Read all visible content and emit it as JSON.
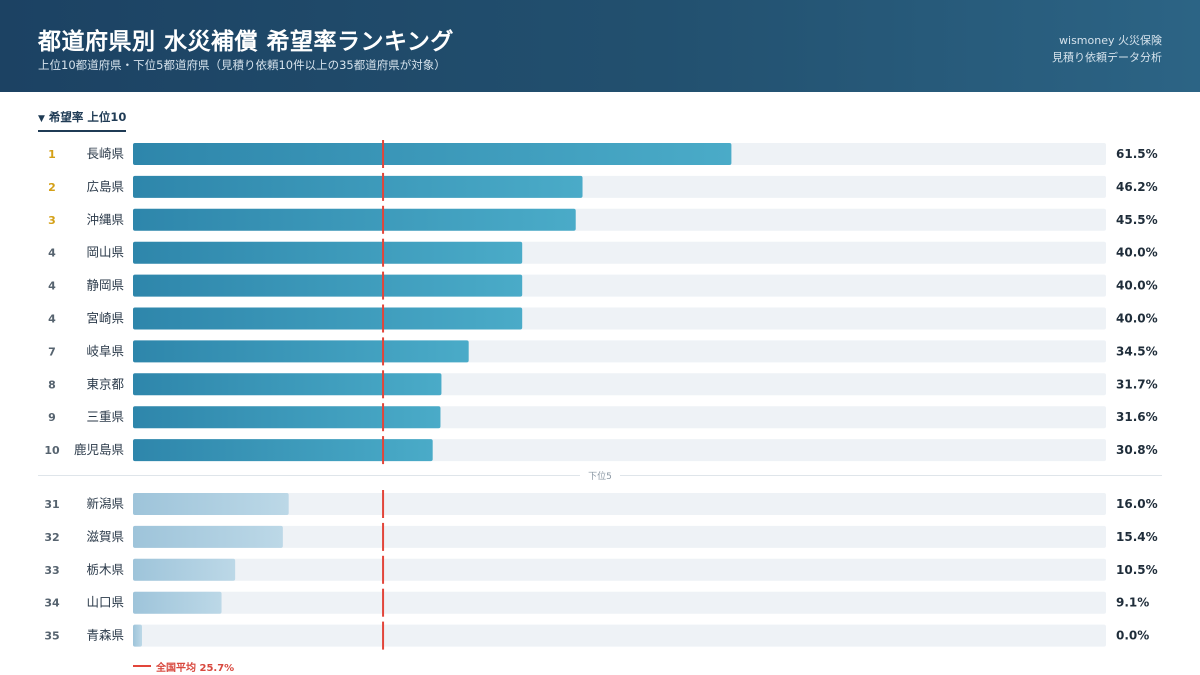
{
  "header": {
    "title": "都道府県別 水災補償 希望率ランキング",
    "subtitle": "上位10都道府県・下位5都道府県（見積り依頼10件以上の35都道府県が対象）",
    "brand_line1": "wismoney 火災保険",
    "brand_line2": "見積り依頼データ分析"
  },
  "section_top_label": "希望率 上位10",
  "divider_label": "下位5",
  "legend_label": "全国平均 25.7%",
  "colors": {
    "bar_top_start": "#2e86ab",
    "bar_top_end": "#4aabc8",
    "bar_bottom_start": "#9ec4da",
    "bar_bottom_end": "#bcd8e7",
    "track": "#eef2f6",
    "average_line": "#e2453a",
    "rank_gold": "#d4a017",
    "rank_default": "#56636f"
  },
  "chart_data": {
    "type": "bar",
    "orientation": "horizontal",
    "title": "都道府県別 水災補償 希望率ランキング",
    "unit": "%",
    "xlim": [
      0,
      100
    ],
    "average": {
      "label": "全国平均",
      "value": 25.7
    },
    "top": [
      {
        "rank": "1",
        "name": "長崎県",
        "value": 61.5,
        "label": "61.5%"
      },
      {
        "rank": "2",
        "name": "広島県",
        "value": 46.2,
        "label": "46.2%"
      },
      {
        "rank": "3",
        "name": "沖縄県",
        "value": 45.5,
        "label": "45.5%"
      },
      {
        "rank": "4",
        "name": "岡山県",
        "value": 40.0,
        "label": "40.0%"
      },
      {
        "rank": "4",
        "name": "静岡県",
        "value": 40.0,
        "label": "40.0%"
      },
      {
        "rank": "4",
        "name": "宮崎県",
        "value": 40.0,
        "label": "40.0%"
      },
      {
        "rank": "7",
        "name": "岐阜県",
        "value": 34.5,
        "label": "34.5%"
      },
      {
        "rank": "8",
        "name": "東京都",
        "value": 31.7,
        "label": "31.7%"
      },
      {
        "rank": "9",
        "name": "三重県",
        "value": 31.6,
        "label": "31.6%"
      },
      {
        "rank": "10",
        "name": "鹿児島県",
        "value": 30.8,
        "label": "30.8%"
      }
    ],
    "bottom": [
      {
        "rank": "31",
        "name": "新潟県",
        "value": 16.0,
        "label": "16.0%"
      },
      {
        "rank": "32",
        "name": "滋賀県",
        "value": 15.4,
        "label": "15.4%"
      },
      {
        "rank": "33",
        "name": "栃木県",
        "value": 10.5,
        "label": "10.5%"
      },
      {
        "rank": "34",
        "name": "山口県",
        "value": 9.1,
        "label": "9.1%"
      },
      {
        "rank": "35",
        "name": "青森県",
        "value": 0.0,
        "label": "0.0%"
      }
    ]
  }
}
